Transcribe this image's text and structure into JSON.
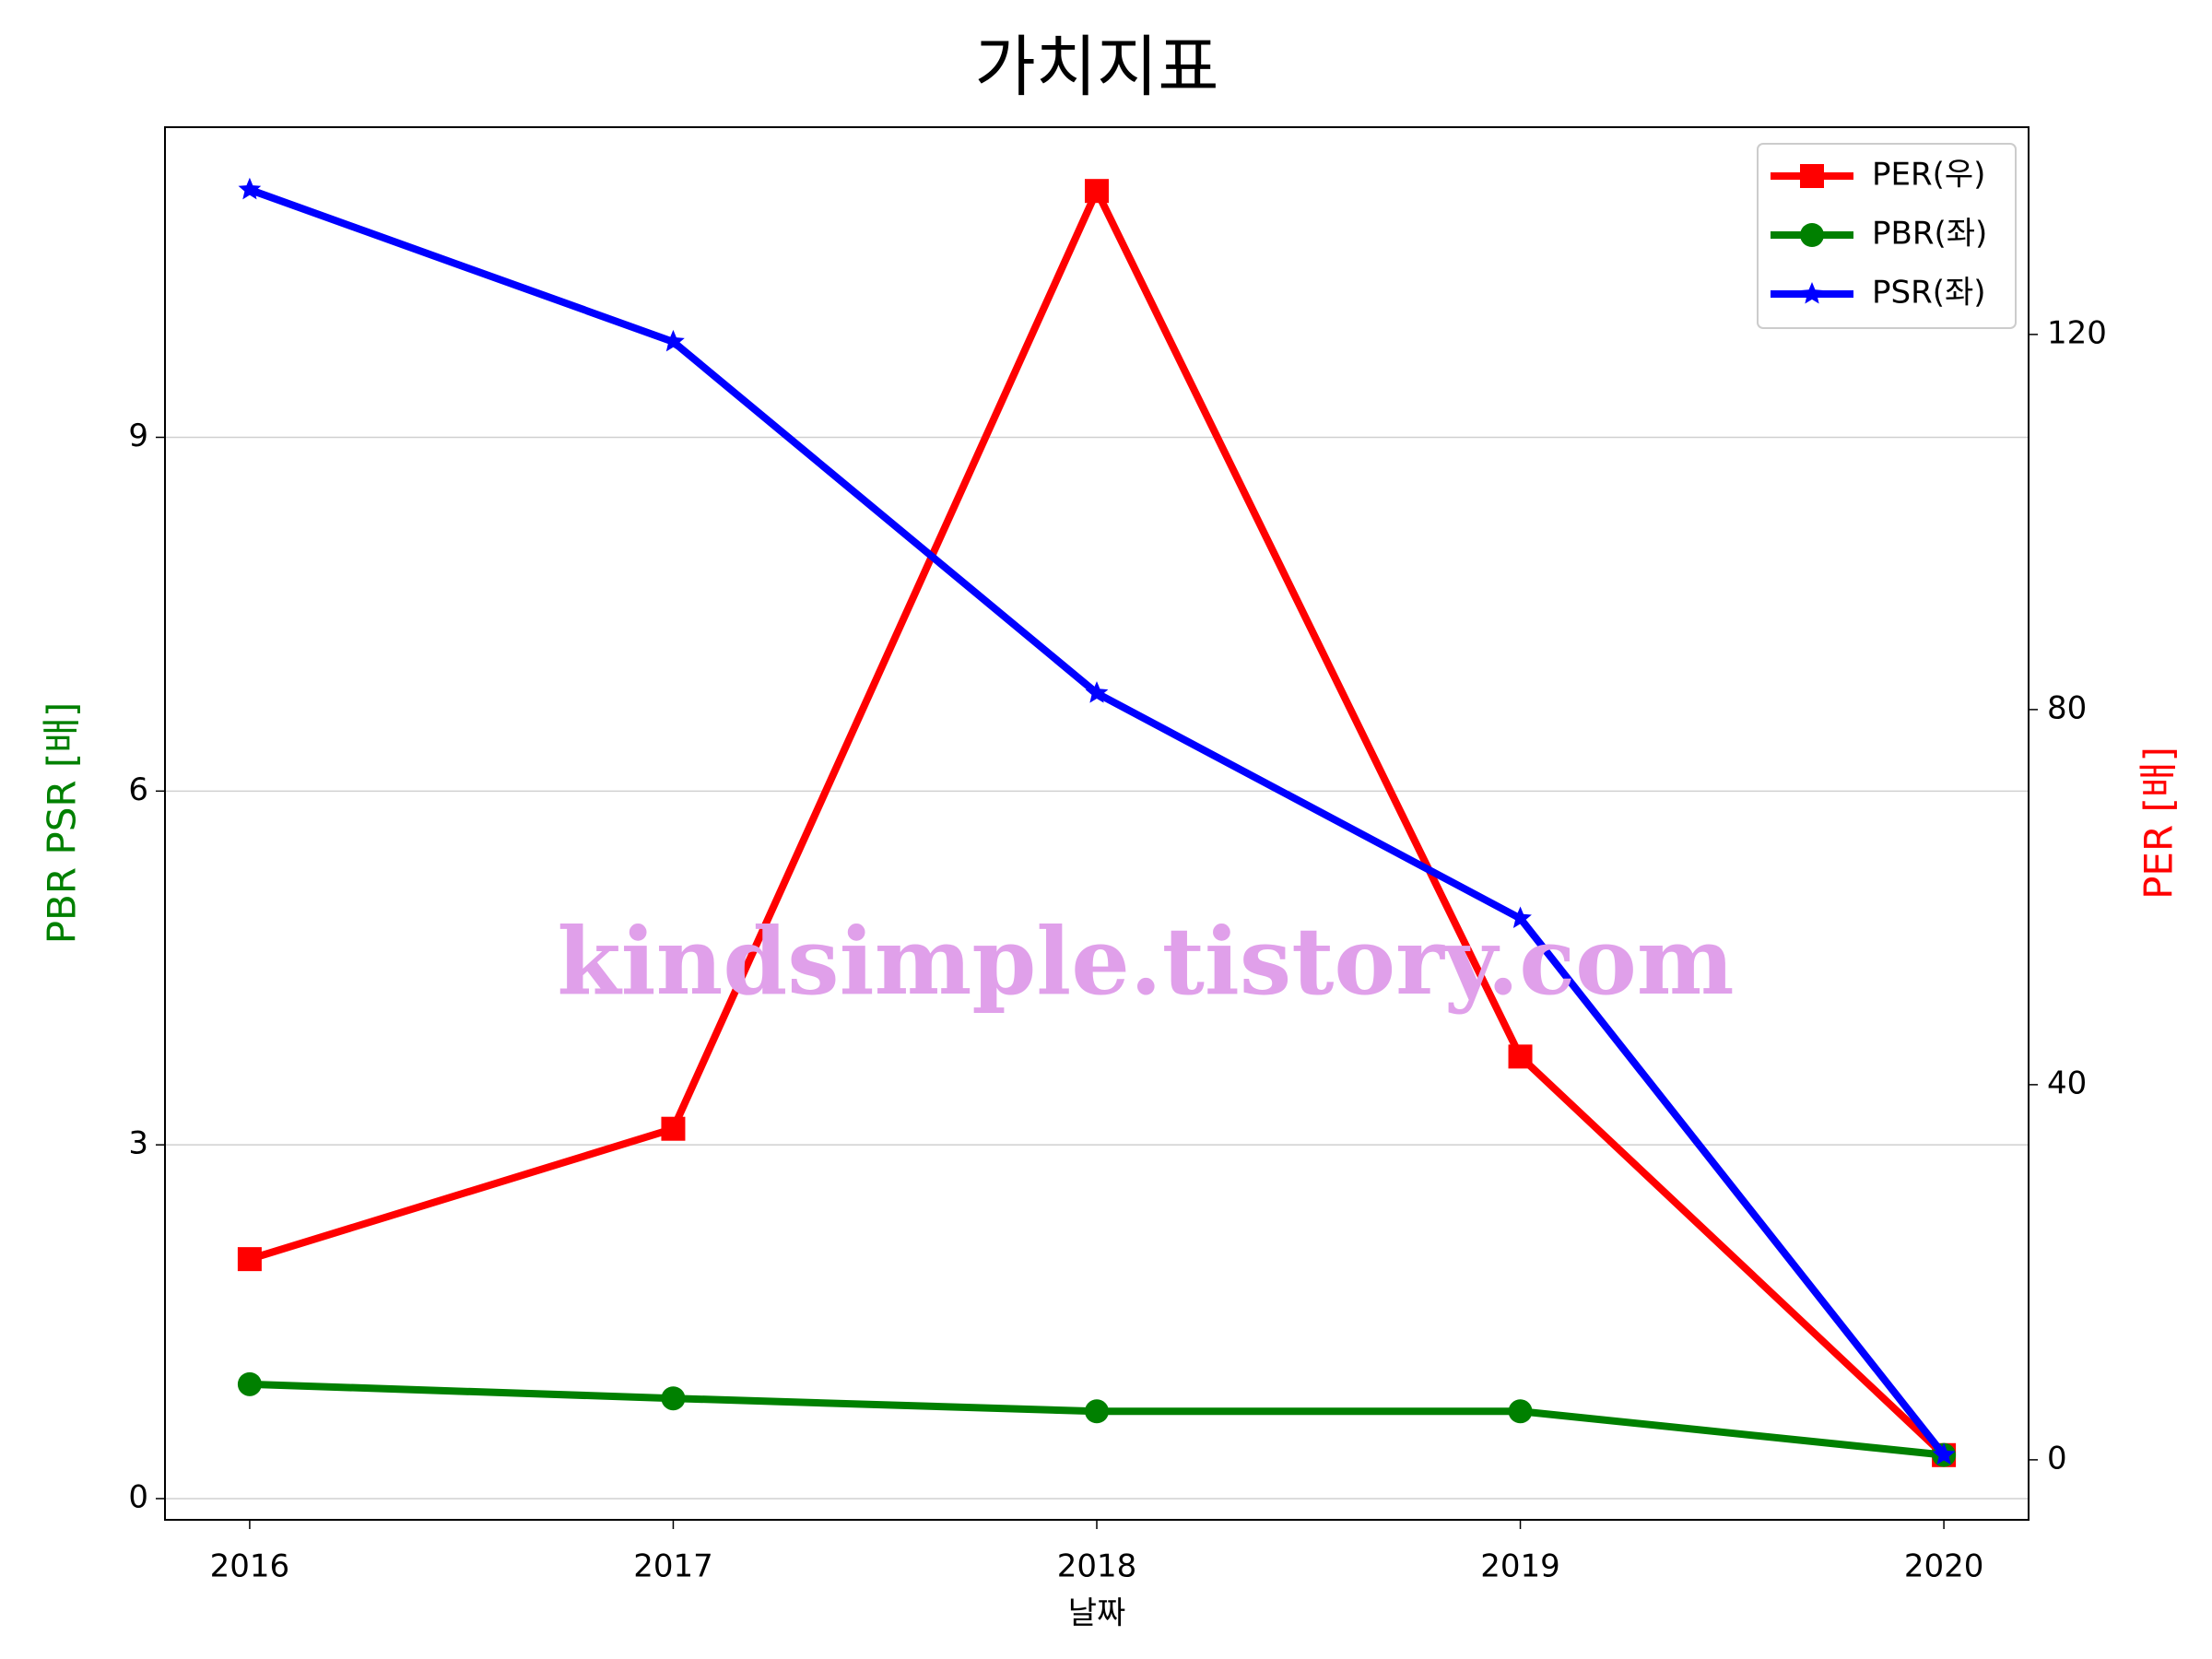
{
  "chart_data": {
    "type": "line",
    "title": "가치지표",
    "x_label": "날짜",
    "y_label": "PBR PSR [배]",
    "y2_label": "PER [배]",
    "annotation": "kindsimple.tistory.com",
    "x": [
      2016,
      2017,
      2018,
      2019,
      2020
    ],
    "xlim": [
      2015.8,
      2020.2
    ],
    "xticks": [
      2016,
      2017,
      2018,
      2019,
      2020
    ],
    "ylim": [
      -0.18,
      11.63
    ],
    "yticks": [
      0,
      3,
      6,
      9
    ],
    "y2lim": [
      -6.4,
      142.1
    ],
    "y2ticks": [
      0,
      40,
      80,
      120
    ],
    "grid": true,
    "legend": "upper right",
    "y_label_color": "green",
    "y2_label_color": "red",
    "series": [
      {
        "name": "PER(우)",
        "color": "#ff0000",
        "marker": "square",
        "axis": "y2",
        "values": [
          21.4,
          35.3,
          135.3,
          43.0,
          0.5
        ]
      },
      {
        "name": "PBR(좌)",
        "color": "#008000",
        "marker": "circle",
        "values": [
          0.97,
          0.85,
          0.74,
          0.74,
          0.37
        ]
      },
      {
        "name": "PSR(좌)",
        "color": "#0000ff",
        "marker": "star",
        "values": [
          11.1,
          9.81,
          6.83,
          4.92,
          0.37
        ]
      }
    ]
  }
}
